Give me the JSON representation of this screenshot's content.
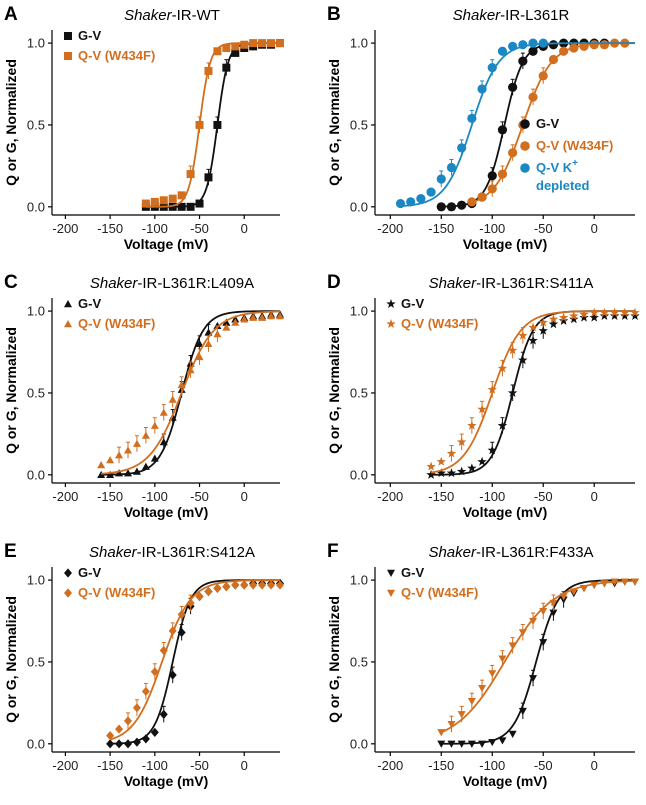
{
  "colors": {
    "gv": "#111111",
    "qv": "#d26f1f",
    "qv_kdepleted": "#1b88c4"
  },
  "chart_data": [
    {
      "panel": "A",
      "title_italic": "Shaker",
      "title_rest": "-IR-WT",
      "type": "scatter",
      "xlabel": "Voltage (mV)",
      "ylabel": "Q or G, Normalized",
      "xlim": [
        -215,
        40
      ],
      "ylim": [
        -0.05,
        1.08
      ],
      "xticks": [
        -200,
        -150,
        -100,
        -50,
        0
      ],
      "xtick_labels": [
        "-200",
        "-150",
        "-100",
        "-50",
        "0"
      ],
      "yticks": [
        0.0,
        0.5,
        1.0
      ],
      "ytick_labels": [
        "0.0",
        "0.5",
        "1.0"
      ],
      "legend_position": "top-left",
      "series": [
        {
          "name": "G-V",
          "marker": "square",
          "color_key": "gv",
          "V50": -30,
          "slope": 6,
          "x": [
            -110,
            -100,
            -90,
            -80,
            -70,
            -60,
            -50,
            -40,
            -30,
            -20,
            -10,
            0,
            10,
            20,
            30,
            40
          ],
          "y": [
            0.0,
            0.0,
            0.0,
            0.0,
            0.0,
            0.0,
            0.02,
            0.18,
            0.5,
            0.85,
            0.94,
            0.97,
            0.98,
            0.99,
            0.99,
            1.0
          ]
        },
        {
          "name": "Q-V (W434F)",
          "marker": "square",
          "color_key": "qv",
          "V50": -50,
          "slope": 6,
          "x": [
            -110,
            -100,
            -90,
            -80,
            -70,
            -60,
            -50,
            -40,
            -30,
            -20,
            -10,
            0,
            10,
            20,
            30,
            40
          ],
          "y": [
            0.02,
            0.03,
            0.04,
            0.05,
            0.07,
            0.2,
            0.5,
            0.83,
            0.95,
            0.97,
            0.98,
            0.99,
            1.0,
            1.0,
            1.0,
            1.0
          ]
        }
      ]
    },
    {
      "panel": "B",
      "title_italic": "Shaker",
      "title_rest": "-IR-L361R",
      "type": "scatter",
      "xlabel": "Voltage (mV)",
      "ylabel": "Q or G, Normalized",
      "xlim": [
        -215,
        40
      ],
      "ylim": [
        -0.05,
        1.08
      ],
      "xticks": [
        -200,
        -150,
        -100,
        -50,
        0
      ],
      "xtick_labels": [
        "-200",
        "-150",
        "-100",
        "-50",
        "0"
      ],
      "yticks": [
        0.0,
        0.5,
        1.0
      ],
      "ytick_labels": [
        "0.0",
        "0.5",
        "1.0"
      ],
      "legend_position": "bottom-right",
      "series": [
        {
          "name": "G-V",
          "marker": "circle",
          "color_key": "gv",
          "V50": -88,
          "slope": 9,
          "x": [
            -150,
            -140,
            -130,
            -120,
            -110,
            -100,
            -90,
            -80,
            -70,
            -60,
            -50,
            -40,
            -30,
            -20,
            -10,
            0,
            10
          ],
          "y": [
            0.0,
            0.0,
            0.01,
            0.02,
            0.06,
            0.19,
            0.47,
            0.73,
            0.89,
            0.95,
            0.98,
            0.99,
            1.0,
            1.0,
            1.0,
            1.0,
            1.0
          ]
        },
        {
          "name": "Q-V (W434F)",
          "marker": "circle",
          "color_key": "qv",
          "V50": -70,
          "slope": 14,
          "x": [
            -120,
            -110,
            -100,
            -90,
            -80,
            -70,
            -60,
            -50,
            -40,
            -30,
            -20,
            -10,
            0,
            10,
            20,
            30
          ],
          "y": [
            0.03,
            0.06,
            0.11,
            0.2,
            0.33,
            0.5,
            0.67,
            0.8,
            0.9,
            0.95,
            0.97,
            0.98,
            0.99,
            0.99,
            1.0,
            1.0
          ]
        },
        {
          "name": "Q-V K+ depleted",
          "marker": "circle",
          "color_key": "qv_kdepleted",
          "V50": -120,
          "slope": 13,
          "x": [
            -190,
            -180,
            -170,
            -160,
            -150,
            -140,
            -130,
            -120,
            -110,
            -100,
            -90,
            -80,
            -70,
            -60,
            -50
          ],
          "y": [
            0.02,
            0.03,
            0.05,
            0.09,
            0.17,
            0.24,
            0.36,
            0.54,
            0.72,
            0.85,
            0.95,
            0.98,
            0.99,
            1.0,
            1.0
          ]
        }
      ],
      "legend_lines": [
        "G-V",
        "Q-V (W434F)",
        "Q-V K",
        "depleted"
      ]
    },
    {
      "panel": "C",
      "title_italic": "Shaker",
      "title_rest": "-IR-L361R:L409A",
      "type": "scatter",
      "xlabel": "Voltage (mV)",
      "ylabel": "Q or G, Normalized",
      "xlim": [
        -215,
        40
      ],
      "ylim": [
        -0.05,
        1.08
      ],
      "xticks": [
        -200,
        -150,
        -100,
        -50,
        0
      ],
      "xtick_labels": [
        "-200",
        "-150",
        "-100",
        "-50",
        "0"
      ],
      "yticks": [
        0.0,
        0.5,
        1.0
      ],
      "ytick_labels": [
        "0.0",
        "0.5",
        "1.0"
      ],
      "legend_position": "top-left",
      "series": [
        {
          "name": "G-V",
          "marker": "triangle-up",
          "color_key": "gv",
          "V50": -70,
          "slope": 12,
          "x": [
            -160,
            -150,
            -140,
            -130,
            -120,
            -110,
            -100,
            -90,
            -80,
            -70,
            -60,
            -50,
            -40,
            -30,
            -20,
            -10,
            0,
            10,
            20,
            30,
            40
          ],
          "y": [
            0.0,
            0.0,
            0.01,
            0.01,
            0.02,
            0.05,
            0.1,
            0.2,
            0.35,
            0.52,
            0.68,
            0.8,
            0.87,
            0.91,
            0.93,
            0.95,
            0.96,
            0.97,
            0.97,
            0.98,
            0.98
          ]
        },
        {
          "name": "Q-V (W434F)",
          "marker": "triangle-up",
          "color_key": "qv",
          "V50": -70,
          "slope": 18,
          "x": [
            -160,
            -150,
            -140,
            -130,
            -120,
            -110,
            -100,
            -90,
            -80,
            -70,
            -60,
            -50,
            -40,
            -30,
            -20,
            -10,
            0,
            10,
            20,
            30,
            40
          ],
          "y": [
            0.06,
            0.09,
            0.12,
            0.15,
            0.19,
            0.24,
            0.3,
            0.38,
            0.46,
            0.55,
            0.64,
            0.72,
            0.8,
            0.86,
            0.9,
            0.93,
            0.95,
            0.96,
            0.96,
            0.97,
            0.97
          ]
        }
      ]
    },
    {
      "panel": "D",
      "title_italic": "Shaker",
      "title_rest": "-IR-L361R:S411A",
      "type": "scatter",
      "xlabel": "Voltage (mV)",
      "ylabel": "Q or G, Normalized",
      "xlim": [
        -215,
        40
      ],
      "ylim": [
        -0.05,
        1.08
      ],
      "xticks": [
        -200,
        -150,
        -100,
        -50,
        0
      ],
      "xtick_labels": [
        "-200",
        "-150",
        "-100",
        "-50",
        "0"
      ],
      "yticks": [
        0.0,
        0.5,
        1.0
      ],
      "ytick_labels": [
        "0.0",
        "0.5",
        "1.0"
      ],
      "legend_position": "top-left",
      "series": [
        {
          "name": "G-V",
          "marker": "star",
          "color_key": "gv",
          "V50": -80,
          "slope": 10,
          "x": [
            -160,
            -150,
            -140,
            -130,
            -120,
            -110,
            -100,
            -90,
            -80,
            -70,
            -60,
            -50,
            -40,
            -30,
            -20,
            -10,
            0,
            10,
            20,
            30,
            40
          ],
          "y": [
            0.0,
            0.01,
            0.01,
            0.02,
            0.04,
            0.08,
            0.15,
            0.3,
            0.5,
            0.7,
            0.82,
            0.88,
            0.92,
            0.94,
            0.95,
            0.96,
            0.96,
            0.97,
            0.97,
            0.97,
            0.97
          ]
        },
        {
          "name": "Q-V (W434F)",
          "marker": "star",
          "color_key": "qv",
          "V50": -100,
          "slope": 14,
          "x": [
            -160,
            -150,
            -140,
            -130,
            -120,
            -110,
            -100,
            -90,
            -80,
            -70,
            -60,
            -50,
            -40,
            -30,
            -20,
            -10,
            0,
            10,
            20,
            30,
            40
          ],
          "y": [
            0.05,
            0.08,
            0.13,
            0.2,
            0.3,
            0.4,
            0.52,
            0.65,
            0.76,
            0.85,
            0.9,
            0.93,
            0.95,
            0.96,
            0.97,
            0.98,
            0.99,
            0.99,
            0.99,
            0.99,
            0.99
          ]
        }
      ]
    },
    {
      "panel": "E",
      "title_italic": "Shaker",
      "title_rest": "-IR-L361R:S412A",
      "type": "scatter",
      "xlabel": "Voltage (mV)",
      "ylabel": "Q or G, Normalized",
      "xlim": [
        -215,
        40
      ],
      "ylim": [
        -0.05,
        1.08
      ],
      "xticks": [
        -200,
        -150,
        -100,
        -50,
        0
      ],
      "xtick_labels": [
        "-200",
        "-150",
        "-100",
        "-50",
        "0"
      ],
      "yticks": [
        0.0,
        0.5,
        1.0
      ],
      "ytick_labels": [
        "0.0",
        "0.5",
        "1.0"
      ],
      "legend_position": "top-left",
      "series": [
        {
          "name": "G-V",
          "marker": "diamond",
          "color_key": "gv",
          "V50": -80,
          "slope": 10,
          "x": [
            -150,
            -140,
            -130,
            -120,
            -110,
            -100,
            -90,
            -80,
            -70,
            -60,
            -50,
            -40,
            -30,
            -20,
            -10,
            0,
            10,
            20,
            30,
            40
          ],
          "y": [
            0.0,
            0.0,
            0.0,
            0.01,
            0.03,
            0.07,
            0.18,
            0.42,
            0.68,
            0.84,
            0.9,
            0.93,
            0.95,
            0.96,
            0.97,
            0.97,
            0.98,
            0.98,
            0.98,
            0.98
          ]
        },
        {
          "name": "Q-V (W434F)",
          "marker": "diamond",
          "color_key": "qv",
          "V50": -92,
          "slope": 16,
          "x": [
            -150,
            -140,
            -130,
            -120,
            -110,
            -100,
            -90,
            -80,
            -70,
            -60,
            -50,
            -40,
            -30,
            -20,
            -10,
            0,
            10,
            20,
            30,
            40
          ],
          "y": [
            0.05,
            0.09,
            0.14,
            0.22,
            0.32,
            0.44,
            0.57,
            0.69,
            0.79,
            0.86,
            0.9,
            0.93,
            0.95,
            0.96,
            0.97,
            0.97,
            0.97,
            0.97,
            0.97,
            0.97
          ]
        }
      ]
    },
    {
      "panel": "F",
      "title_italic": "Shaker",
      "title_rest": "-IR-L361R:F433A",
      "type": "scatter",
      "xlabel": "Voltage (mV)",
      "ylabel": "Q or G, Normalized",
      "xlim": [
        -215,
        40
      ],
      "ylim": [
        -0.05,
        1.08
      ],
      "xticks": [
        -200,
        -150,
        -100,
        -50,
        0
      ],
      "xtick_labels": [
        "-200",
        "-150",
        "-100",
        "-50",
        "0"
      ],
      "yticks": [
        0.0,
        0.5,
        1.0
      ],
      "ytick_labels": [
        "0.0",
        "0.5",
        "1.0"
      ],
      "legend_position": "top-left",
      "series": [
        {
          "name": "G-V",
          "marker": "triangle-down",
          "color_key": "gv",
          "V50": -57,
          "slope": 11,
          "x": [
            -150,
            -140,
            -130,
            -120,
            -110,
            -100,
            -90,
            -80,
            -70,
            -60,
            -50,
            -40,
            -30,
            -20,
            -10,
            0,
            10,
            20,
            30,
            40
          ],
          "y": [
            0.0,
            0.0,
            0.0,
            0.0,
            0.0,
            0.01,
            0.02,
            0.06,
            0.2,
            0.4,
            0.62,
            0.8,
            0.88,
            0.92,
            0.95,
            0.97,
            0.98,
            0.98,
            0.99,
            0.99
          ]
        },
        {
          "name": "Q-V (W434F)",
          "marker": "triangle-down",
          "color_key": "qv",
          "V50": -88,
          "slope": 24,
          "x": [
            -150,
            -140,
            -130,
            -120,
            -110,
            -100,
            -90,
            -80,
            -70,
            -60,
            -50,
            -40,
            -30,
            -20,
            -10,
            0,
            10,
            20,
            30,
            40
          ],
          "y": [
            0.07,
            0.12,
            0.18,
            0.26,
            0.34,
            0.43,
            0.52,
            0.6,
            0.68,
            0.75,
            0.81,
            0.86,
            0.9,
            0.93,
            0.95,
            0.97,
            0.98,
            0.99,
            0.99,
            0.99
          ]
        }
      ]
    }
  ]
}
